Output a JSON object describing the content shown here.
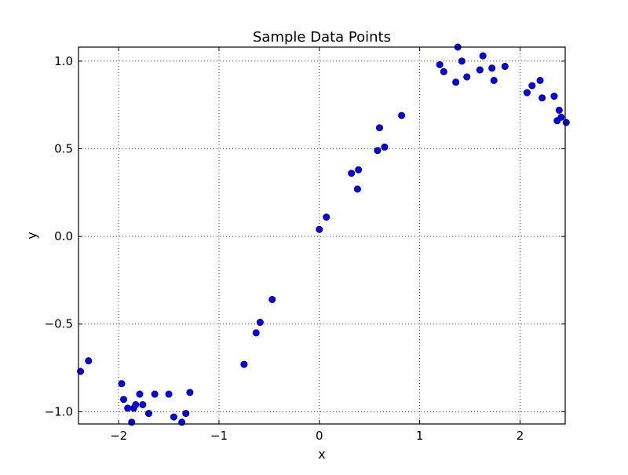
{
  "chart_data": {
    "type": "scatter",
    "title": "Sample Data Points",
    "xlabel": "x",
    "ylabel": "y",
    "xlim": [
      -2.4,
      2.45
    ],
    "ylim": [
      -1.07,
      1.08
    ],
    "xticks": [
      -2,
      -1,
      0,
      1,
      2
    ],
    "xtick_labels": [
      "−2",
      "−1",
      "0",
      "1",
      "2"
    ],
    "yticks": [
      -1.0,
      -0.5,
      0.0,
      0.5,
      1.0
    ],
    "ytick_labels": [
      "−1.0",
      "−0.5",
      "0.0",
      "0.5",
      "1.0"
    ],
    "grid": true,
    "marker_color": "#0000ff",
    "marker_edge_color": "#000000",
    "points": [
      [
        -2.38,
        -0.77
      ],
      [
        -2.3,
        -0.71
      ],
      [
        -1.97,
        -0.84
      ],
      [
        -1.95,
        -0.93
      ],
      [
        -1.91,
        -0.98
      ],
      [
        -1.87,
        -1.06
      ],
      [
        -1.85,
        -0.98
      ],
      [
        -1.83,
        -0.96
      ],
      [
        -1.79,
        -0.9
      ],
      [
        -1.76,
        -0.96
      ],
      [
        -1.7,
        -1.01
      ],
      [
        -1.64,
        -0.9
      ],
      [
        -1.5,
        -0.9
      ],
      [
        -1.45,
        -1.03
      ],
      [
        -1.37,
        -1.06
      ],
      [
        -1.33,
        -1.01
      ],
      [
        -1.29,
        -0.89
      ],
      [
        -0.75,
        -0.73
      ],
      [
        -0.63,
        -0.55
      ],
      [
        -0.59,
        -0.49
      ],
      [
        -0.47,
        -0.36
      ],
      [
        0.0,
        0.04
      ],
      [
        0.07,
        0.11
      ],
      [
        0.32,
        0.36
      ],
      [
        0.38,
        0.27
      ],
      [
        0.39,
        0.38
      ],
      [
        0.58,
        0.49
      ],
      [
        0.6,
        0.62
      ],
      [
        0.65,
        0.51
      ],
      [
        0.82,
        0.69
      ],
      [
        1.2,
        0.98
      ],
      [
        1.24,
        0.94
      ],
      [
        1.36,
        0.88
      ],
      [
        1.38,
        1.08
      ],
      [
        1.42,
        1.0
      ],
      [
        1.47,
        0.91
      ],
      [
        1.6,
        0.95
      ],
      [
        1.63,
        1.03
      ],
      [
        1.72,
        0.96
      ],
      [
        1.74,
        0.89
      ],
      [
        1.85,
        0.97
      ],
      [
        2.07,
        0.82
      ],
      [
        2.12,
        0.86
      ],
      [
        2.2,
        0.89
      ],
      [
        2.22,
        0.79
      ],
      [
        2.34,
        0.8
      ],
      [
        2.37,
        0.66
      ],
      [
        2.39,
        0.72
      ],
      [
        2.41,
        0.68
      ],
      [
        2.46,
        0.65
      ]
    ]
  }
}
